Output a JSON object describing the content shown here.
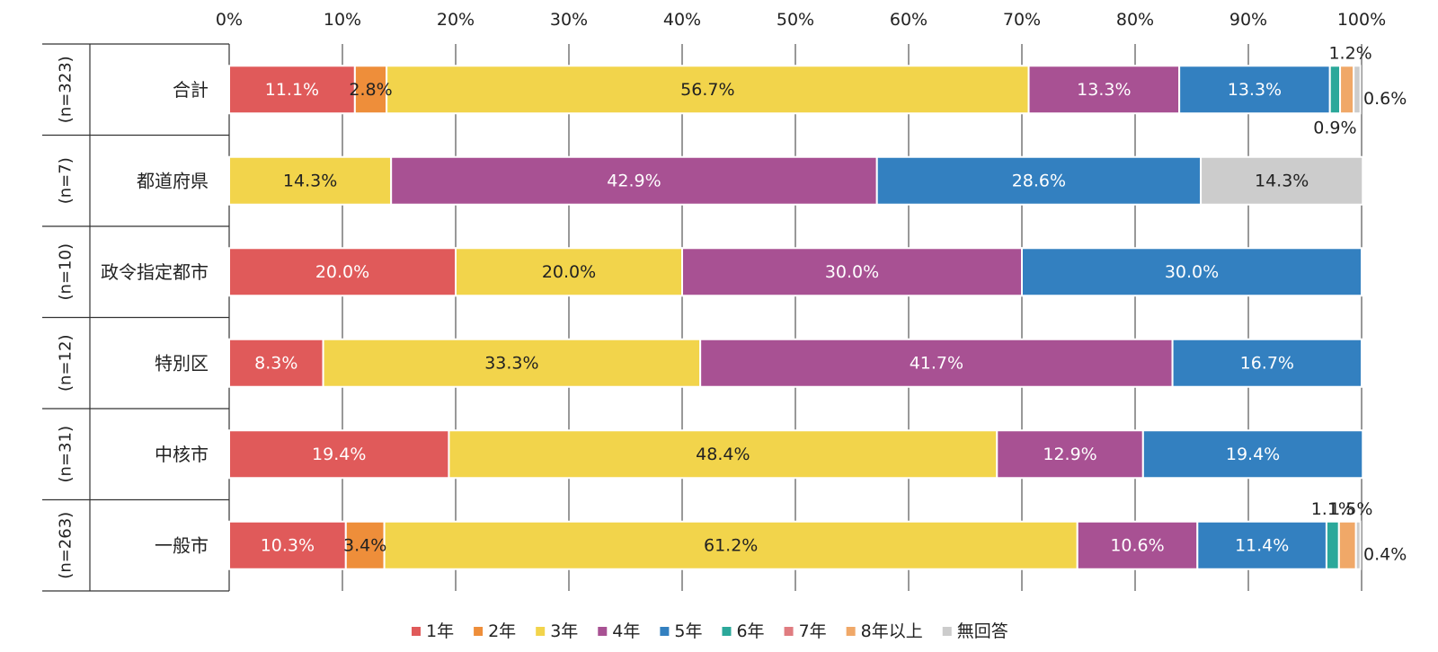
{
  "chart_data": {
    "type": "bar",
    "orientation": "horizontal",
    "stacked": true,
    "percent_stacked": true,
    "title": "",
    "xlim": [
      0,
      100
    ],
    "x_ticks": [
      "0%",
      "10%",
      "20%",
      "30%",
      "40%",
      "50%",
      "60%",
      "70%",
      "80%",
      "90%",
      "100%"
    ],
    "grid": true,
    "legend_position": "bottom",
    "categories": [
      "合計",
      "都道府県",
      "政令指定都市",
      "特別区",
      "中核市",
      "一般市"
    ],
    "sample_sizes": [
      "(n=323)",
      "(n=7)",
      "(n=10)",
      "(n=12)",
      "(n=31)",
      "(n=263)"
    ],
    "series": [
      {
        "name": "1年",
        "color": "#E05A5A",
        "values": [
          11.1,
          0,
          20.0,
          8.3,
          19.4,
          10.3
        ],
        "labels": [
          "11.1%",
          "",
          "20.0%",
          "8.3%",
          "19.4%",
          "10.3%"
        ]
      },
      {
        "name": "2年",
        "color": "#EE8E3A",
        "values": [
          2.8,
          0,
          0,
          0,
          0,
          3.4
        ],
        "labels": [
          "2.8%",
          "",
          "",
          "",
          "",
          "3.4%"
        ]
      },
      {
        "name": "3年",
        "color": "#F2D44B",
        "values": [
          56.7,
          14.3,
          20.0,
          33.3,
          48.4,
          61.2
        ],
        "labels": [
          "56.7%",
          "14.3%",
          "20.0%",
          "33.3%",
          "48.4%",
          "61.2%"
        ]
      },
      {
        "name": "4年",
        "color": "#A85193",
        "values": [
          13.3,
          42.9,
          30.0,
          41.7,
          12.9,
          10.6
        ],
        "labels": [
          "13.3%",
          "42.9%",
          "30.0%",
          "41.7%",
          "12.9%",
          "10.6%"
        ]
      },
      {
        "name": "5年",
        "color": "#3380C0",
        "values": [
          13.3,
          28.6,
          30.0,
          16.7,
          19.4,
          11.4
        ],
        "labels": [
          "13.3%",
          "28.6%",
          "30.0%",
          "16.7%",
          "19.4%",
          "11.4%"
        ]
      },
      {
        "name": "6年",
        "color": "#2BA89A",
        "values": [
          0.9,
          0,
          0,
          0,
          0,
          1.1
        ],
        "labels": [
          "0.9%",
          "",
          "",
          "",
          "",
          "1.1%"
        ]
      },
      {
        "name": "7年",
        "color": "#E07C80",
        "values": [
          0,
          0,
          0,
          0,
          0,
          0
        ],
        "labels": [
          "",
          "",
          "",
          "",
          "",
          ""
        ]
      },
      {
        "name": "8年以上",
        "color": "#F0A868",
        "values": [
          1.2,
          0,
          0,
          0,
          0,
          1.5
        ],
        "labels": [
          "1.2%",
          "",
          "",
          "",
          "",
          "1.5%"
        ]
      },
      {
        "name": "無回答",
        "color": "#CCCCCC",
        "values": [
          0.6,
          14.3,
          0,
          0,
          0,
          0.4
        ],
        "labels": [
          "0.6%",
          "14.3%",
          "",
          "",
          "",
          "0.4%"
        ]
      }
    ]
  }
}
